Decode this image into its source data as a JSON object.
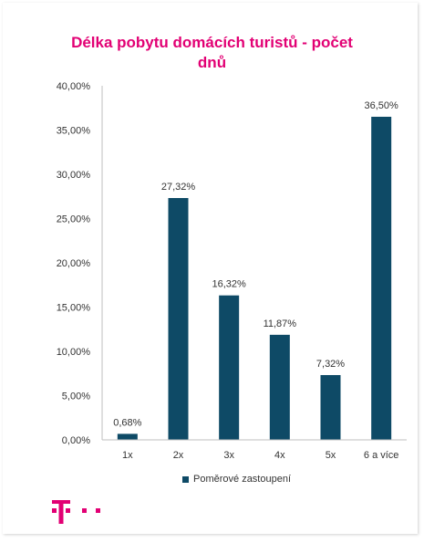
{
  "chart_data": {
    "type": "bar",
    "title_line1": "Délka pobytu domácích turistů - počet",
    "title_line2": "dnů",
    "categories": [
      "1x",
      "2x",
      "3x",
      "4x",
      "5x",
      "6 a více"
    ],
    "series": [
      {
        "name": "Poměrové zastoupení",
        "values": [
          0.68,
          27.32,
          16.32,
          11.87,
          7.32,
          36.5
        ],
        "labels": [
          "0,68%",
          "27,32%",
          "16,32%",
          "11,87%",
          "7,32%",
          "36,50%"
        ]
      }
    ],
    "yticks": [
      "0,00%",
      "5,00%",
      "10,00%",
      "15,00%",
      "20,00%",
      "25,00%",
      "30,00%",
      "35,00%",
      "40,00%"
    ],
    "ylim": [
      0,
      40
    ],
    "grid": false,
    "legend_position": "bottom",
    "bar_color": "#0e4a66"
  }
}
